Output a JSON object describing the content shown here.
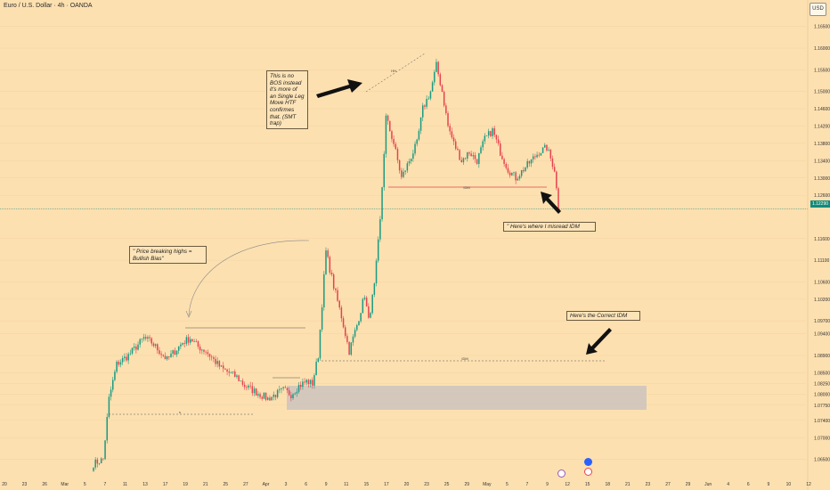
{
  "header": {
    "title": "Euro / U.S. Dollar · 4h · OANDA",
    "currency_button": "USD"
  },
  "current_price": "1.12290",
  "annotations": {
    "bos_note": "This is no BOS instead it's more of an Single Leg Move HTF confirmes that. (SMT trap)",
    "bias_note": "\" Price breaking highs = Bullish Bias\"",
    "misread_note": "\" Here's where I misread IDM",
    "correct_note": "Here's the Correct IDM",
    "idm_label": "IDM",
    "high_label": "HH",
    "s_label": "s"
  },
  "colors": {
    "background": "#fde0b0",
    "up": "#1a9a82",
    "down": "#e5424f",
    "zone": "#c9c2c0",
    "price_line": "#138a7a",
    "icon_blue": "#2962ff"
  },
  "icons": [
    "lightning-icon",
    "calendar-icon",
    "flag-icon"
  ],
  "chart_data": {
    "type": "candlestick",
    "title": "Euro / U.S. Dollar · 4h · OANDA",
    "ylim": [
      1.061,
      1.167
    ],
    "y_ticks": [
      "1.16500",
      "1.16000",
      "1.15500",
      "1.15000",
      "1.14600",
      "1.14200",
      "1.13800",
      "1.13400",
      "1.13000",
      "1.12600",
      "1.12290",
      "1.11600",
      "1.11100",
      "1.10600",
      "1.10200",
      "1.09700",
      "1.09400",
      "1.08900",
      "1.08500",
      "1.08250",
      "1.08000",
      "1.07750",
      "1.07400",
      "1.07000",
      "1.06500"
    ],
    "x_ticks": [
      "20",
      "23",
      "26",
      "Mar",
      "5",
      "7",
      "11",
      "13",
      "17",
      "19",
      "21",
      "25",
      "27",
      "Apr",
      "3",
      "6",
      "9",
      "11",
      "15",
      "17",
      "20",
      "23",
      "25",
      "29",
      "May",
      "5",
      "7",
      "9",
      "12",
      "15",
      "18",
      "21",
      "23",
      "27",
      "29",
      "Jun",
      "4",
      "6",
      "9",
      "10",
      "12"
    ],
    "waypoints": [
      [
        0,
        1.064
      ],
      [
        5,
        1.065
      ],
      [
        8,
        1.079
      ],
      [
        12,
        1.087
      ],
      [
        18,
        1.089
      ],
      [
        22,
        1.091
      ],
      [
        26,
        1.093
      ],
      [
        30,
        1.092
      ],
      [
        34,
        1.09
      ],
      [
        38,
        1.088
      ],
      [
        42,
        1.09
      ],
      [
        46,
        1.092
      ],
      [
        50,
        1.093
      ],
      [
        54,
        1.091
      ],
      [
        58,
        1.09
      ],
      [
        62,
        1.088
      ],
      [
        66,
        1.086
      ],
      [
        70,
        1.085
      ],
      [
        74,
        1.084
      ],
      [
        78,
        1.082
      ],
      [
        82,
        1.081
      ],
      [
        86,
        1.08
      ],
      [
        90,
        1.079
      ],
      [
        94,
        1.08
      ],
      [
        98,
        1.081
      ],
      [
        102,
        1.08
      ],
      [
        106,
        1.082
      ],
      [
        110,
        1.083
      ],
      [
        113,
        1.0825
      ],
      [
        116,
        1.089
      ],
      [
        120,
        1.113
      ],
      [
        124,
        1.105
      ],
      [
        128,
        1.098
      ],
      [
        132,
        1.09
      ],
      [
        136,
        1.096
      ],
      [
        140,
        1.103
      ],
      [
        142,
        1.097
      ],
      [
        145,
        1.105
      ],
      [
        148,
        1.12
      ],
      [
        151,
        1.144
      ],
      [
        155,
        1.138
      ],
      [
        159,
        1.13
      ],
      [
        163,
        1.134
      ],
      [
        167,
        1.138
      ],
      [
        170,
        1.146
      ],
      [
        174,
        1.15
      ],
      [
        177,
        1.156
      ],
      [
        180,
        1.15
      ],
      [
        183,
        1.142
      ],
      [
        186,
        1.138
      ],
      [
        190,
        1.134
      ],
      [
        194,
        1.136
      ],
      [
        198,
        1.134
      ],
      [
        202,
        1.139
      ],
      [
        206,
        1.141
      ],
      [
        210,
        1.136
      ],
      [
        214,
        1.132
      ],
      [
        218,
        1.13
      ],
      [
        222,
        1.132
      ],
      [
        226,
        1.134
      ],
      [
        230,
        1.136
      ],
      [
        234,
        1.137
      ],
      [
        238,
        1.132
      ],
      [
        240,
        1.1229
      ]
    ]
  }
}
